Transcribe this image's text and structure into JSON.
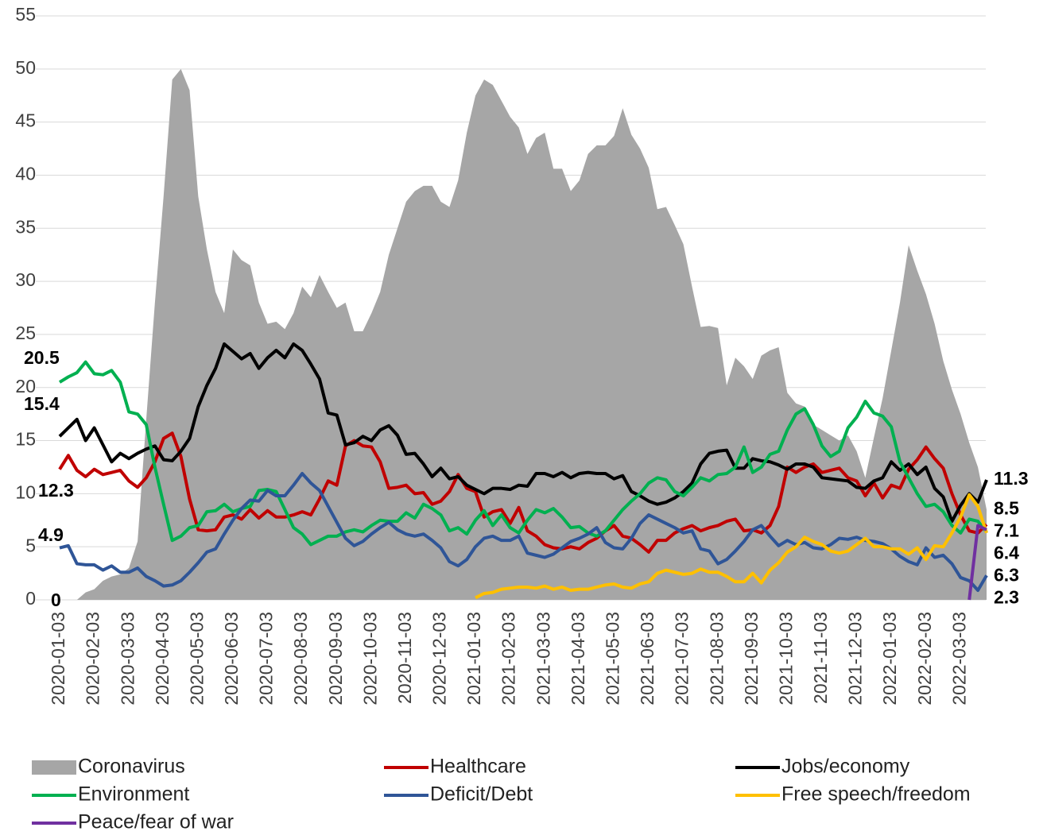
{
  "chart_data": {
    "type": "line",
    "categories": [
      "2020-01-03",
      null,
      null,
      null,
      "2020-02-03",
      null,
      null,
      null,
      "2020-03-03",
      null,
      null,
      null,
      "2020-04-03",
      null,
      null,
      null,
      "2020-05-03",
      null,
      null,
      null,
      "2020-06-03",
      null,
      null,
      null,
      "2020-07-03",
      null,
      null,
      null,
      "2020-08-03",
      null,
      null,
      null,
      "2020-09-03",
      null,
      null,
      null,
      "2020-10-03",
      null,
      null,
      null,
      "2020-11-03",
      null,
      null,
      null,
      "2020-12-03",
      null,
      null,
      null,
      "2021-01-03",
      null,
      null,
      null,
      "2021-02-03",
      null,
      null,
      null,
      "2021-03-03",
      null,
      null,
      null,
      "2021-04-03",
      null,
      null,
      null,
      "2021-05-03",
      null,
      null,
      null,
      "2021-06-03",
      null,
      null,
      null,
      "2021-07-03",
      null,
      null,
      null,
      "2021-08-03",
      null,
      null,
      null,
      "2021-09-03",
      null,
      null,
      null,
      "2021-10-03",
      null,
      null,
      null,
      "2021-11-03",
      null,
      null,
      null,
      "2021-12-03",
      null,
      null,
      null,
      "2022-01-03",
      null,
      null,
      null,
      "2022-02-03",
      null,
      null,
      null,
      "2022-03-03",
      null,
      null,
      null
    ],
    "ylim": [
      0,
      55
    ],
    "yticks": [
      0,
      5,
      10,
      15,
      20,
      25,
      30,
      35,
      40,
      45,
      50,
      55
    ],
    "grid": true,
    "series": [
      {
        "name": "Coronavirus",
        "kind": "area",
        "color": "#a6a6a6",
        "label_first": true,
        "label_last": true,
        "values": [
          0,
          0,
          0,
          0.7,
          1,
          1.8,
          2.2,
          2.4,
          3,
          5.5,
          17,
          28,
          38,
          49,
          50,
          48,
          38,
          33,
          29,
          27,
          33,
          32,
          31.5,
          28,
          26,
          26.2,
          25.5,
          27,
          29.5,
          28.5,
          30.6,
          29,
          27.5,
          28,
          25.3,
          25.3,
          27,
          29,
          32.5,
          35,
          37.5,
          38.5,
          39,
          39,
          37.5,
          37,
          39.5,
          44,
          47.5,
          49,
          48.5,
          47,
          45.5,
          44.5,
          42,
          43.5,
          44,
          40.6,
          40.6,
          38.5,
          39.5,
          42,
          42.8,
          42.8,
          43.7,
          46.3,
          43.8,
          42.5,
          40.7,
          36.8,
          37,
          35.3,
          33.5,
          29.5,
          25.7,
          25.8,
          25.6,
          20.2,
          22.8,
          22,
          20.8,
          23,
          23.5,
          23.8,
          19.5,
          18.5,
          18.2,
          16.5,
          16,
          15.5,
          15,
          15.5,
          14,
          11.5,
          15.3,
          19,
          23.5,
          28,
          33.4,
          31,
          28.8,
          26,
          22.5,
          19.8,
          17.5,
          14.8,
          12.5,
          8.5
        ]
      },
      {
        "name": "Healthcare",
        "color": "#c00000",
        "label_first": true,
        "label_last": true,
        "values": [
          12.3,
          13.6,
          12.2,
          11.6,
          12.3,
          11.8,
          12,
          12.2,
          11.2,
          10.6,
          11.5,
          13,
          15.2,
          15.7,
          13.5,
          9.5,
          6.6,
          6.5,
          6.6,
          7.8,
          8,
          7.6,
          8.5,
          7.7,
          8.4,
          7.8,
          7.8,
          8,
          8.3,
          8,
          9.5,
          11.2,
          10.8,
          14.5,
          15,
          14.5,
          14.4,
          13,
          10.5,
          10.6,
          10.8,
          10,
          10.1,
          9,
          9.3,
          10.2,
          11.8,
          10.5,
          10.2,
          7.8,
          8.3,
          8.5,
          7.2,
          8.7,
          6.5,
          6,
          5.2,
          4.9,
          4.8,
          5,
          4.8,
          5.4,
          5.8,
          6.5,
          7,
          6,
          5.8,
          5.2,
          4.5,
          5.6,
          5.6,
          6.3,
          6.7,
          7,
          6.5,
          6.8,
          7,
          7.4,
          7.6,
          6.5,
          6.6,
          6.3,
          7,
          8.8,
          12.5,
          12,
          12.5,
          12.8,
          12,
          12.2,
          12.4,
          11.5,
          11.2,
          9.8,
          11,
          9.6,
          10.8,
          10.5,
          12.3,
          13.2,
          14.4,
          13.3,
          12.4,
          10,
          8,
          6.5,
          6.3,
          7.1
        ]
      },
      {
        "name": "Jobs/economy",
        "color": "#000000",
        "label_first": true,
        "label_last": true,
        "values": [
          15.4,
          16.2,
          17,
          15,
          16.2,
          14.6,
          13,
          13.8,
          13.3,
          13.8,
          14.2,
          14.5,
          13.2,
          13.1,
          14,
          15.2,
          18.2,
          20.2,
          21.8,
          24.1,
          23.4,
          22.7,
          23.2,
          21.8,
          22.8,
          23.5,
          22.8,
          24.1,
          23.5,
          22.2,
          20.8,
          17.6,
          17.4,
          14.6,
          14.8,
          15.4,
          15,
          16,
          16.4,
          15.5,
          13.7,
          13.8,
          12.8,
          11.6,
          12.4,
          11.4,
          11.6,
          10.8,
          10.4,
          10,
          10.5,
          10.5,
          10.4,
          10.8,
          10.7,
          11.9,
          11.9,
          11.6,
          12,
          11.5,
          11.9,
          12,
          11.9,
          11.9,
          11.4,
          11.7,
          10.2,
          9.8,
          9.3,
          9,
          9.2,
          9.6,
          10.2,
          11,
          12.8,
          13.8,
          14,
          14.1,
          12.4,
          12.4,
          13.3,
          13.1,
          13,
          12.7,
          12.3,
          12.8,
          12.8,
          12.5,
          11.5,
          11.4,
          11.3,
          11.2,
          10.6,
          10.5,
          11.2,
          11.5,
          13,
          12.2,
          12.8,
          11.8,
          12.5,
          10.5,
          9.7,
          7.4,
          8.9,
          10,
          9.2,
          11.3
        ]
      },
      {
        "name": "Environment",
        "color": "#00b050",
        "label_first": true,
        "label_last": true,
        "values": [
          20.5,
          21,
          21.4,
          22.4,
          21.3,
          21.2,
          21.6,
          20.5,
          17.7,
          17.5,
          16.5,
          12.5,
          9,
          5.6,
          6,
          6.8,
          7,
          8.3,
          8.4,
          9,
          8.3,
          8.6,
          8.8,
          10.3,
          10.4,
          10.2,
          8.5,
          6.8,
          6.2,
          5.2,
          5.6,
          6,
          6,
          6.4,
          6.6,
          6.4,
          7,
          7.5,
          7.4,
          7.4,
          8.2,
          7.7,
          9,
          8.6,
          8,
          6.5,
          6.8,
          6.2,
          7.5,
          8.4,
          7,
          8,
          6.8,
          6.3,
          7.5,
          8.5,
          8.2,
          8.6,
          7.8,
          6.8,
          6.9,
          6.3,
          6,
          6.5,
          7.5,
          8.5,
          9.3,
          10,
          11,
          11.5,
          11.3,
          10.2,
          9.8,
          10.6,
          11.5,
          11.2,
          11.8,
          11.9,
          12.5,
          14.4,
          12,
          12.5,
          13.7,
          14,
          16,
          17.5,
          18,
          16.5,
          14.5,
          13.5,
          14,
          16.2,
          17.2,
          18.7,
          17.6,
          17.3,
          16.3,
          13,
          11.5,
          10,
          8.8,
          9,
          8.3,
          7,
          6.3,
          7.6,
          7.4,
          6.4
        ]
      },
      {
        "name": "Deficit/Debt",
        "color": "#2f5597",
        "label_first": true,
        "label_last": true,
        "values": [
          4.9,
          5.1,
          3.4,
          3.3,
          3.3,
          2.8,
          3.2,
          2.6,
          2.6,
          3,
          2.2,
          1.8,
          1.3,
          1.4,
          1.8,
          2.6,
          3.5,
          4.5,
          4.8,
          6.2,
          7.5,
          8.6,
          9.4,
          9.3,
          10.3,
          9.8,
          9.8,
          10.8,
          11.9,
          11,
          10.3,
          8.8,
          7.3,
          5.8,
          5.1,
          5.5,
          6.2,
          6.8,
          7.3,
          6.6,
          6.2,
          6,
          6.2,
          5.6,
          4.9,
          3.6,
          3.2,
          3.8,
          5,
          5.8,
          6,
          5.6,
          5.6,
          6,
          4.4,
          4.2,
          4,
          4.3,
          4.9,
          5.5,
          5.8,
          6.2,
          6.8,
          5.4,
          4.9,
          4.8,
          5.8,
          7.2,
          8,
          7.6,
          7.2,
          6.8,
          6.3,
          6.5,
          4.8,
          4.6,
          3.4,
          3.8,
          4.6,
          5.5,
          6.6,
          7,
          6,
          5.1,
          5.6,
          5.2,
          5.4,
          4.9,
          4.8,
          5.2,
          5.8,
          5.7,
          5.9,
          5.6,
          5.5,
          5.3,
          4.8,
          4.1,
          3.6,
          3.3,
          4.9,
          4,
          4.2,
          3.4,
          2.1,
          1.8,
          0.9,
          2.3
        ]
      },
      {
        "name": "Free speech/freedom",
        "color": "#ffc000",
        "label_last": true,
        "values": [
          null,
          null,
          null,
          null,
          null,
          null,
          null,
          null,
          null,
          null,
          null,
          null,
          null,
          null,
          null,
          null,
          null,
          null,
          null,
          null,
          null,
          null,
          null,
          null,
          null,
          null,
          null,
          null,
          null,
          null,
          null,
          null,
          null,
          null,
          null,
          null,
          null,
          null,
          null,
          null,
          null,
          null,
          null,
          null,
          null,
          null,
          null,
          null,
          0.2,
          0.6,
          0.7,
          1,
          1.1,
          1.2,
          1.2,
          1.1,
          1.3,
          1,
          1.2,
          0.9,
          1,
          1,
          1.2,
          1.4,
          1.5,
          1.2,
          1.1,
          1.5,
          1.7,
          2.5,
          2.8,
          2.6,
          2.4,
          2.5,
          2.9,
          2.6,
          2.6,
          2.2,
          1.7,
          1.7,
          2.5,
          1.6,
          2.8,
          3.5,
          4.5,
          5,
          5.9,
          5.5,
          5.2,
          4.6,
          4.4,
          4.6,
          5.2,
          5.8,
          5,
          5,
          4.8,
          4.8,
          4.3,
          4.9,
          3.8,
          5.1,
          5,
          6.3,
          7.8,
          9.9,
          8.8,
          6.3
        ]
      },
      {
        "name": "Peace/fear of war",
        "color": "#7030a0",
        "values": [
          null,
          null,
          null,
          null,
          null,
          null,
          null,
          null,
          null,
          null,
          null,
          null,
          null,
          null,
          null,
          null,
          null,
          null,
          null,
          null,
          null,
          null,
          null,
          null,
          null,
          null,
          null,
          null,
          null,
          null,
          null,
          null,
          null,
          null,
          null,
          null,
          null,
          null,
          null,
          null,
          null,
          null,
          null,
          null,
          null,
          null,
          null,
          null,
          null,
          null,
          null,
          null,
          null,
          null,
          null,
          null,
          null,
          null,
          null,
          null,
          null,
          null,
          null,
          null,
          null,
          null,
          null,
          null,
          null,
          null,
          null,
          null,
          null,
          null,
          null,
          null,
          null,
          null,
          null,
          null,
          null,
          null,
          null,
          null,
          null,
          null,
          null,
          null,
          null,
          null,
          null,
          null,
          null,
          null,
          null,
          null,
          null,
          null,
          null,
          null,
          null,
          null,
          null,
          null,
          null,
          0,
          7,
          6.6
        ]
      }
    ]
  }
}
